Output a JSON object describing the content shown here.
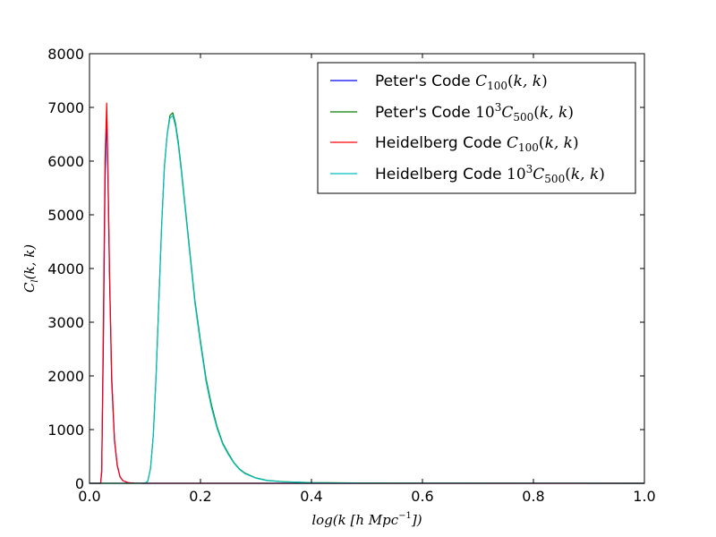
{
  "chart_data": {
    "type": "line",
    "xlabel": "log(k [h Mpc^-1])",
    "ylabel": "C_l(k,k)",
    "xlim": [
      0.0,
      1.0
    ],
    "ylim": [
      0,
      8000
    ],
    "grid": false,
    "legend_position": "top-right",
    "x_ticks": [
      "0.0",
      "0.2",
      "0.4",
      "0.6",
      "0.8",
      "1.0"
    ],
    "y_ticks": [
      "0",
      "1000",
      "2000",
      "3000",
      "4000",
      "5000",
      "6000",
      "7000",
      "8000"
    ],
    "series": [
      {
        "name": "Peter's Code C_100(k,k)",
        "color": "#0000ff",
        "x": [
          0.0,
          0.02,
          0.022,
          0.025,
          0.028,
          0.031,
          0.033,
          0.036,
          0.04,
          0.045,
          0.05,
          0.055,
          0.06,
          0.07,
          0.08,
          0.1,
          0.15,
          0.3,
          1.0
        ],
        "y": [
          0,
          0,
          200,
          2600,
          5600,
          6900,
          5900,
          3900,
          1900,
          800,
          330,
          120,
          50,
          10,
          3,
          0,
          0,
          0,
          0
        ]
      },
      {
        "name": "Peter's Code 10^3 C_500(k,k)",
        "color": "#008000",
        "x": [
          0.0,
          0.1,
          0.105,
          0.11,
          0.115,
          0.12,
          0.125,
          0.13,
          0.135,
          0.14,
          0.145,
          0.15,
          0.155,
          0.16,
          0.165,
          0.17,
          0.18,
          0.19,
          0.2,
          0.21,
          0.22,
          0.23,
          0.24,
          0.25,
          0.26,
          0.27,
          0.28,
          0.3,
          0.32,
          0.35,
          0.4,
          0.45,
          0.5,
          0.6,
          1.0
        ],
        "y": [
          0,
          0,
          40,
          280,
          900,
          2000,
          3400,
          4800,
          5900,
          6500,
          6850,
          6900,
          6700,
          6350,
          5900,
          5400,
          4400,
          3400,
          2650,
          1950,
          1450,
          1050,
          750,
          560,
          390,
          270,
          190,
          100,
          55,
          30,
          12,
          8,
          5,
          3,
          0
        ]
      },
      {
        "name": "Heidelberg Code C_100(k,k)",
        "color": "#ff0000",
        "x": [
          0.0,
          0.02,
          0.022,
          0.025,
          0.028,
          0.031,
          0.033,
          0.036,
          0.04,
          0.045,
          0.05,
          0.055,
          0.06,
          0.07,
          0.08,
          0.1,
          0.15,
          0.3,
          1.0
        ],
        "y": [
          0,
          0,
          250,
          3000,
          6000,
          7080,
          6000,
          4000,
          2000,
          820,
          340,
          125,
          50,
          10,
          3,
          0,
          0,
          0,
          0
        ]
      },
      {
        "name": "Heidelberg Code 10^3 C_500(k,k)",
        "color": "#00bfbf",
        "x": [
          0.0,
          0.1,
          0.105,
          0.11,
          0.115,
          0.12,
          0.125,
          0.13,
          0.135,
          0.14,
          0.145,
          0.15,
          0.155,
          0.16,
          0.165,
          0.17,
          0.18,
          0.19,
          0.2,
          0.21,
          0.22,
          0.23,
          0.24,
          0.25,
          0.26,
          0.27,
          0.28,
          0.3,
          0.32,
          0.35,
          0.4,
          0.45,
          0.5,
          0.6,
          1.0
        ],
        "y": [
          0,
          0,
          40,
          280,
          900,
          2000,
          3400,
          4800,
          5900,
          6500,
          6800,
          6850,
          6650,
          6300,
          5850,
          5350,
          4350,
          3350,
          2600,
          1900,
          1400,
          1020,
          730,
          540,
          380,
          260,
          180,
          95,
          50,
          28,
          10,
          6,
          4,
          2,
          0
        ]
      }
    ]
  }
}
